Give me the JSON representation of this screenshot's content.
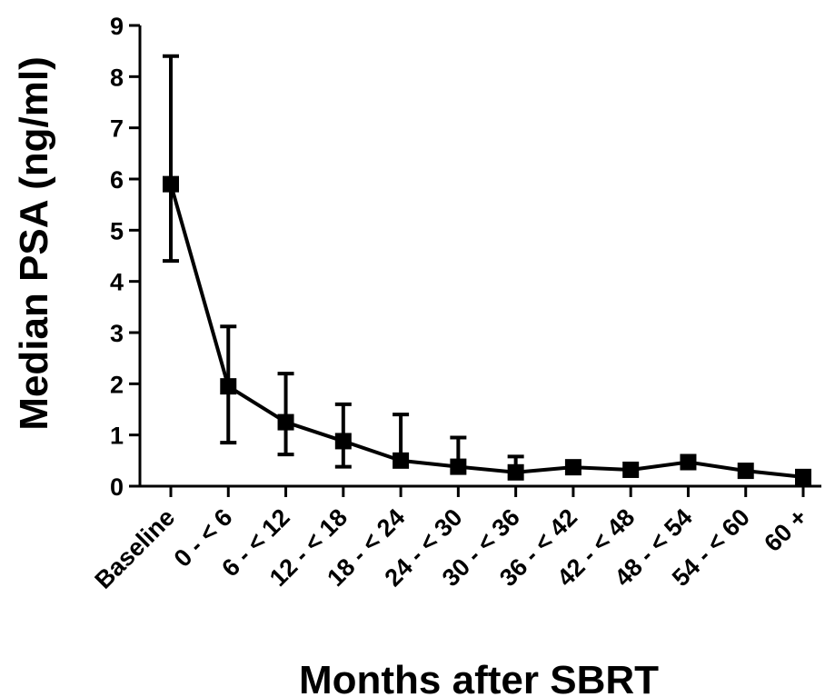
{
  "chart_data": {
    "type": "line",
    "title": "",
    "xlabel": "Months after SBRT",
    "ylabel": "Median PSA (ng/ml)",
    "ylim": [
      0,
      9
    ],
    "yticks": [
      "0",
      "1",
      "2",
      "3",
      "4",
      "5",
      "6",
      "7",
      "8",
      "9"
    ],
    "categories": [
      "Baseline",
      "0 - < 6",
      "6 - < 12",
      "12 - < 18",
      "18 - < 24",
      "24 - < 30",
      "30 - < 36",
      "36 - < 42",
      "42 - < 48",
      "48 - < 54",
      "54 - < 60",
      "60 +"
    ],
    "grid": false,
    "legend": "none",
    "series": [
      {
        "values": [
          5.9,
          1.95,
          1.25,
          0.88,
          0.5,
          0.38,
          0.27,
          0.37,
          0.32,
          0.47,
          0.3,
          0.18
        ],
        "error_low": [
          4.4,
          0.85,
          0.62,
          0.38,
          null,
          null,
          null,
          null,
          null,
          null,
          null,
          null
        ],
        "error_high": [
          8.4,
          3.12,
          2.2,
          1.6,
          1.4,
          0.95,
          0.58,
          null,
          null,
          null,
          null,
          null
        ],
        "color": "#000000",
        "marker": "square"
      }
    ]
  }
}
